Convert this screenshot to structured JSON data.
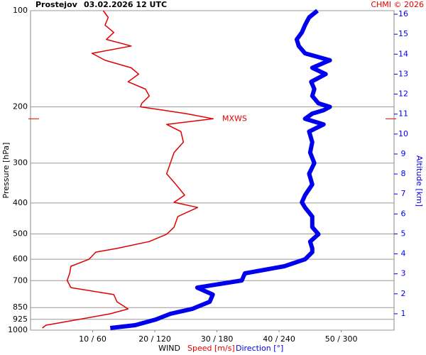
{
  "chart_data": {
    "type": "profile",
    "title": "Prostejov",
    "subtitle": "03.02.2026 12 UTC",
    "credit": "CHMI © 2026",
    "y_label": "Pressure [hPa]",
    "y2_label": "Altitude [km]",
    "x_label": "WIND",
    "log_y": true,
    "ylim": [
      1000,
      100
    ],
    "yticks": [
      100,
      200,
      300,
      400,
      500,
      600,
      700,
      850,
      925,
      1000
    ],
    "y2lim": [
      0.18,
      16.18
    ],
    "y2ticks": [
      1,
      2,
      3,
      4,
      5,
      6,
      7,
      8,
      9,
      10,
      11,
      12,
      13,
      14,
      15,
      16
    ],
    "xlim": [
      0,
      58.5
    ],
    "x2lim": [
      0,
      351
    ],
    "xticks": [
      {
        "value": 10,
        "label": "10 / 60"
      },
      {
        "value": 20,
        "label": "20 / 120"
      },
      {
        "value": 30,
        "label": "30 / 180"
      },
      {
        "value": 40,
        "label": "40 / 240"
      },
      {
        "value": 50,
        "label": "50 / 300"
      }
    ],
    "grid": true,
    "pressure": [
      100,
      105,
      111,
      117,
      123,
      129,
      136,
      143,
      151,
      158,
      167,
      176,
      185,
      195,
      200,
      205,
      210,
      218,
      227,
      239,
      258,
      278,
      300,
      324,
      350,
      378,
      398,
      413,
      441,
      476,
      501,
      528,
      555,
      570,
      600,
      631,
      664,
      699,
      736,
      774,
      815,
      858,
      889,
      926,
      965,
      985
    ],
    "series": [
      {
        "name": "Speed [m/s]",
        "color": "#e00000",
        "axis": "x",
        "values": [
          11.7,
          12.5,
          12.0,
          13.4,
          12.2,
          16.2,
          9.9,
          12.0,
          16.2,
          17.4,
          15.7,
          18.5,
          19.1,
          17.9,
          17.7,
          21.4,
          25.0,
          29.4,
          21.9,
          24.2,
          24.6,
          23.1,
          22.5,
          21.9,
          23.4,
          24.8,
          23.1,
          26.9,
          23.7,
          23.1,
          21.9,
          19.1,
          13.9,
          10.5,
          9.4,
          6.5,
          6.3,
          5.9,
          6.5,
          13.4,
          13.9,
          15.7,
          12.8,
          7.7,
          2.5,
          1.9
        ]
      },
      {
        "name": "Direction [°]",
        "color": "#0000ee",
        "axis": "x2",
        "values": [
          277,
          269,
          265,
          262,
          257,
          259,
          265,
          289,
          272,
          285,
          271,
          274,
          272,
          278,
          289,
          283,
          272,
          265,
          283,
          269,
          272,
          270,
          274,
          269,
          272,
          265,
          262,
          265,
          272,
          272,
          278,
          270,
          272,
          272,
          265,
          245,
          207,
          204,
          161,
          176,
          173,
          156,
          135,
          121,
          101,
          77
        ]
      }
    ],
    "annotation": {
      "text": "MXWS",
      "pressure": 218,
      "color": "#e00000"
    }
  }
}
